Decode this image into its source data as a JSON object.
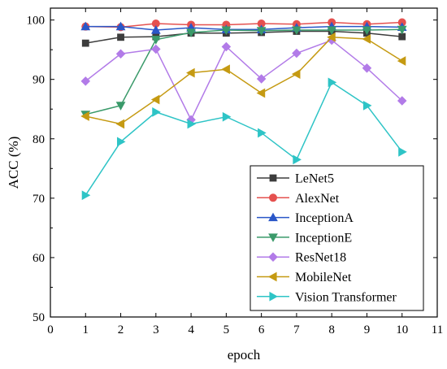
{
  "chart_data": {
    "type": "line",
    "title": "",
    "xlabel": "epoch",
    "ylabel": "ACC (%)",
    "xlim": [
      0,
      11
    ],
    "ylim": [
      50,
      102
    ],
    "xticks": [
      "0",
      "1",
      "2",
      "3",
      "4",
      "5",
      "6",
      "7",
      "8",
      "9",
      "10",
      "11"
    ],
    "yticks": [
      "50",
      "60",
      "70",
      "80",
      "90",
      "100"
    ],
    "grid": false,
    "legend_position": "bottom-right",
    "x": [
      1,
      2,
      3,
      4,
      5,
      6,
      7,
      8,
      9,
      10
    ],
    "series": [
      {
        "name": "LeNet5",
        "color": "#3d3d3d",
        "marker": "square",
        "values": [
          96.1,
          97.1,
          97.2,
          97.8,
          97.8,
          97.9,
          98.1,
          98.1,
          97.8,
          97.2
        ]
      },
      {
        "name": "AlexNet",
        "color": "#e5514f",
        "marker": "circle",
        "values": [
          98.9,
          98.8,
          99.4,
          99.2,
          99.2,
          99.4,
          99.3,
          99.6,
          99.3,
          99.6
        ]
      },
      {
        "name": "InceptionA",
        "color": "#2a57c8",
        "marker": "triangle-up",
        "values": [
          98.9,
          98.9,
          98.3,
          98.7,
          98.4,
          98.4,
          98.7,
          98.9,
          98.9,
          98.8
        ]
      },
      {
        "name": "InceptionE",
        "color": "#3a9a6a",
        "marker": "triangle-down",
        "values": [
          84.1,
          85.6,
          96.7,
          97.9,
          98.3,
          98.2,
          98.3,
          98.3,
          98.3,
          98.4
        ]
      },
      {
        "name": "ResNet18",
        "color": "#b27be8",
        "marker": "diamond",
        "values": [
          89.7,
          94.3,
          95.1,
          83.2,
          95.5,
          90.1,
          94.4,
          96.6,
          91.9,
          86.4
        ]
      },
      {
        "name": "MobileNet",
        "color": "#c59a12",
        "marker": "triangle-left",
        "values": [
          83.8,
          82.5,
          86.6,
          91.1,
          91.7,
          87.7,
          90.9,
          97.1,
          96.8,
          93.1
        ]
      },
      {
        "name": "Vision Transformer",
        "color": "#2ec4c6",
        "marker": "triangle-right",
        "values": [
          70.5,
          79.5,
          84.5,
          82.5,
          83.7,
          81.0,
          76.5,
          89.5,
          85.6,
          77.8
        ]
      }
    ]
  }
}
